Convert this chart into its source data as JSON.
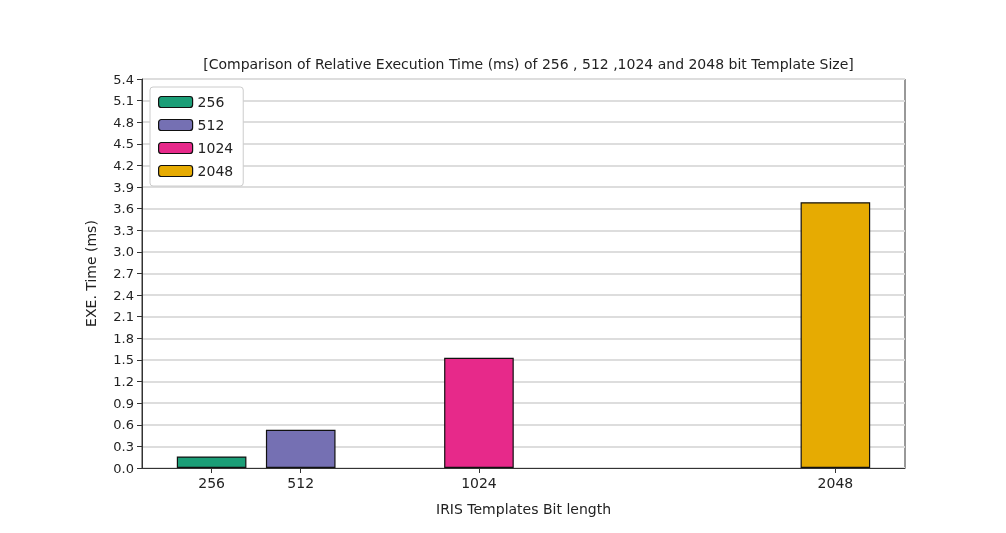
{
  "chart_data": {
    "type": "bar",
    "title": "[Comparison of Relative Execution Time (ms) of 256 , 512 ,1024 and 2048 bit Template Size]",
    "xlabel": "IRIS Templates Bit length",
    "ylabel": "EXE. Time (ms)",
    "xlim": [
      56,
      2248
    ],
    "xticks": [
      256,
      512,
      1024,
      2048
    ],
    "ylim": [
      0,
      5.4
    ],
    "yticks": [
      {
        "value": 0,
        "label": "0.0"
      },
      0.3,
      0.6,
      0.9,
      1.2,
      1.5,
      1.8,
      2.1,
      2.4,
      2.7,
      {
        "value": 3,
        "label": "3.0"
      },
      3.3,
      3.6,
      3.9,
      4.2,
      4.5,
      4.8,
      5.1,
      5.4
    ],
    "series": [
      {
        "name": "256",
        "color": "#1b9e77",
        "x": [
          256
        ],
        "values": [
          0.16
        ]
      },
      {
        "name": "512",
        "color": "#7570b3",
        "x": [
          512
        ],
        "values": [
          0.53
        ]
      },
      {
        "name": "1024",
        "color": "#e7298a",
        "x": [
          1024
        ],
        "values": [
          1.53
        ]
      },
      {
        "name": "2048",
        "color": "#e6ab02",
        "x": [
          2048
        ],
        "values": [
          3.69
        ]
      }
    ],
    "grid": "y",
    "legend": "top left"
  }
}
